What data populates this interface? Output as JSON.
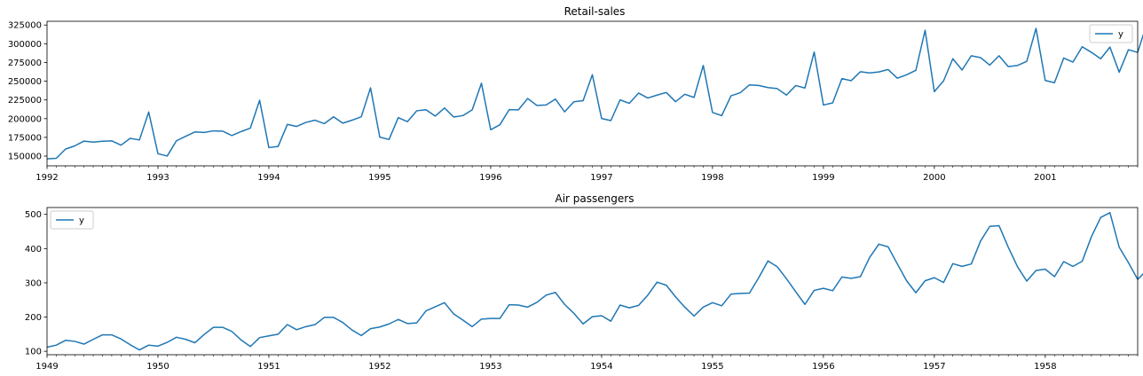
{
  "chart_data": [
    {
      "type": "line",
      "title": "Retail-sales",
      "xlabel": "",
      "ylabel": "",
      "x_start": "1992-01",
      "x_frequency": "monthly",
      "xlim": [
        "1992-01",
        "2001-11"
      ],
      "ylim": [
        137000,
        330000
      ],
      "x_ticks": [
        "1992",
        "1993",
        "1994",
        "1995",
        "1996",
        "1997",
        "1998",
        "1999",
        "2000",
        "2001"
      ],
      "y_ticks": [
        150000,
        175000,
        200000,
        225000,
        250000,
        275000,
        300000,
        325000
      ],
      "y_tick_labels": [
        "150000",
        "175000",
        "200000",
        "225000",
        "250000",
        "275000",
        "300000",
        "325000"
      ],
      "grid": false,
      "legend_position": "top-right",
      "color": "#1f77b4",
      "series": [
        {
          "name": "y",
          "values": [
            146376,
            147079,
            159336,
            163669,
            170068,
            168663,
            169890,
            170364,
            164617,
            173655,
            171547,
            208838,
            153221,
            150087,
            170439,
            176456,
            182231,
            181535,
            183682,
            183318,
            177406,
            182737,
            187443,
            224540,
            161349,
            162841,
            192319,
            189569,
            194927,
            197946,
            193355,
            202388,
            193954,
            197956,
            202520,
            241111,
            175344,
            172138,
            201279,
            196039,
            210478,
            211844,
            203411,
            214248,
            202122,
            204117,
            211802,
            247269,
            185209,
            191846,
            212089,
            211739,
            226919,
            217617,
            218191,
            226112,
            209090,
            222577,
            224024,
            258701,
            200178,
            197385,
            225056,
            220456,
            234158,
            227522,
            231437,
            234928,
            222608,
            232516,
            228313,
            271026,
            208236,
            204041,
            230428,
            234582,
            245116,
            244296,
            241462,
            240100,
            231436,
            244201,
            240865,
            289003,
            218208,
            221040,
            253469,
            250716,
            262620,
            261039,
            262408,
            265580,
            254000,
            258600,
            264500,
            318000,
            236000,
            250500,
            280000,
            265000,
            284000,
            281500,
            271500,
            284000,
            269500,
            271000,
            276500,
            320500,
            251000,
            248000,
            281000,
            275500,
            296000,
            288500,
            280000,
            295500,
            262000,
            292000,
            288500,
            327000
          ]
        }
      ]
    },
    {
      "type": "line",
      "title": "Air passengers",
      "xlabel": "",
      "ylabel": "",
      "x_start": "1949-01",
      "x_frequency": "monthly",
      "xlim": [
        "1949-01",
        "1958-11"
      ],
      "ylim": [
        90,
        520
      ],
      "x_ticks": [
        "1949",
        "1950",
        "1951",
        "1952",
        "1953",
        "1954",
        "1955",
        "1956",
        "1957",
        "1958"
      ],
      "y_ticks": [
        100,
        200,
        300,
        400,
        500
      ],
      "y_tick_labels": [
        "100",
        "200",
        "300",
        "400",
        "500"
      ],
      "grid": false,
      "legend_position": "top-left",
      "color": "#1f77b4",
      "series": [
        {
          "name": "y",
          "values": [
            112,
            118,
            132,
            129,
            121,
            135,
            148,
            148,
            136,
            119,
            104,
            118,
            115,
            126,
            141,
            135,
            125,
            149,
            170,
            170,
            158,
            133,
            114,
            140,
            145,
            150,
            178,
            163,
            172,
            178,
            199,
            199,
            184,
            162,
            146,
            166,
            171,
            180,
            193,
            181,
            183,
            218,
            230,
            242,
            209,
            191,
            172,
            194,
            196,
            196,
            236,
            235,
            229,
            243,
            264,
            272,
            237,
            211,
            180,
            201,
            204,
            188,
            235,
            227,
            234,
            264,
            302,
            293,
            259,
            229,
            203,
            229,
            242,
            233,
            267,
            269,
            270,
            315,
            364,
            347,
            312,
            274,
            237,
            278,
            284,
            277,
            317,
            313,
            318,
            374,
            413,
            405,
            355,
            306,
            271,
            306,
            315,
            301,
            356,
            348,
            355,
            422,
            465,
            467,
            404,
            347,
            305,
            336,
            340,
            318,
            362,
            348,
            363,
            435,
            491,
            505,
            404,
            359,
            310,
            337
          ]
        }
      ]
    }
  ]
}
